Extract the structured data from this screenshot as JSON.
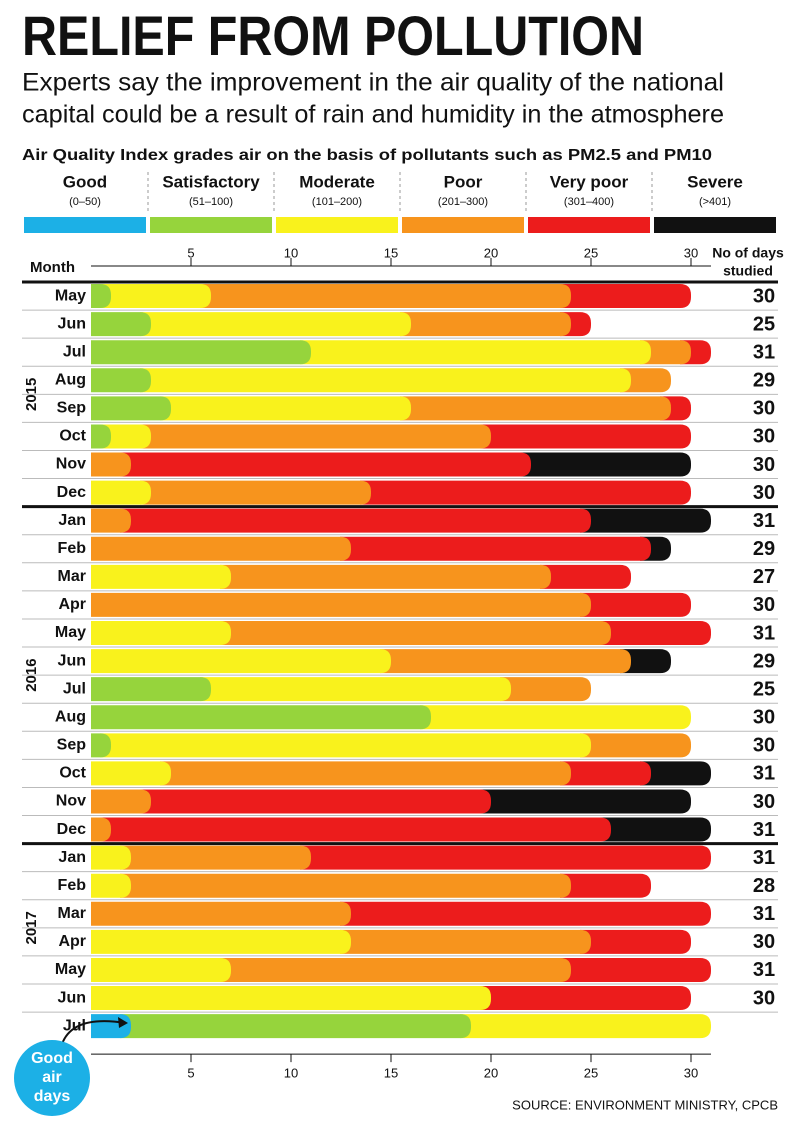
{
  "chart_data": {
    "type": "stacked-bar-horizontal",
    "title": "RELIEF FROM POLLUTION",
    "subtitle": [
      "Experts say the improvement in the air quality of the national",
      "capital could be a result of rain and humidity in the atmosphere"
    ],
    "legend_title": "Air Quality Index grades air on the basis of pollutants such as PM2.5 and PM10",
    "y_label": "Month",
    "category_groups": [
      {
        "label": "2015",
        "categories": [
          "May",
          "Jun",
          "Jul",
          "Aug",
          "Sep",
          "Oct",
          "Nov",
          "Dec"
        ]
      },
      {
        "label": "2016",
        "categories": [
          "Jan",
          "Feb",
          "Mar",
          "Apr",
          "May",
          "Jun",
          "Jul",
          "Aug",
          "Sep",
          "Oct",
          "Nov",
          "Dec"
        ]
      },
      {
        "label": "2017",
        "categories": [
          "Jan",
          "Feb",
          "Mar",
          "Apr",
          "May",
          "Jun",
          "Jul"
        ]
      }
    ],
    "series": [
      {
        "name": "Good",
        "range": "(0–50)",
        "color": "#1cb0e6",
        "values": [
          0,
          0,
          0,
          0,
          0,
          0,
          0,
          0,
          0,
          0,
          0,
          0,
          0,
          0,
          0,
          0,
          0,
          0,
          0,
          0,
          0,
          0,
          0,
          0,
          0,
          0,
          2
        ]
      },
      {
        "name": "Satisfactory",
        "range": "(51–100)",
        "color": "#96d43c",
        "values": [
          1,
          3,
          11,
          3,
          4,
          1,
          0,
          0,
          0,
          0,
          0,
          0,
          0,
          0,
          6,
          17,
          1,
          0,
          0,
          0,
          0,
          0,
          0,
          0,
          0,
          0,
          17
        ]
      },
      {
        "name": "Moderate",
        "range": "(101–200)",
        "color": "#f9f21c",
        "values": [
          5,
          13,
          17,
          24,
          12,
          2,
          0,
          3,
          0,
          0,
          7,
          0,
          7,
          15,
          15,
          13,
          24,
          4,
          0,
          0,
          2,
          2,
          0,
          13,
          7,
          20,
          12
        ]
      },
      {
        "name": "Poor",
        "range": "(201–300)",
        "color": "#f7941d",
        "values": [
          18,
          8,
          2,
          2,
          13,
          17,
          2,
          11,
          2,
          13,
          16,
          25,
          19,
          12,
          4,
          0,
          5,
          20,
          3,
          1,
          9,
          22,
          13,
          12,
          17,
          0,
          0
        ]
      },
      {
        "name": "Very poor",
        "range": "(301–400)",
        "color": "#ec1c1c",
        "values": [
          6,
          1,
          1,
          0,
          1,
          10,
          20,
          16,
          23,
          15,
          4,
          5,
          5,
          0,
          0,
          0,
          0,
          4,
          17,
          25,
          20,
          4,
          18,
          5,
          7,
          10,
          0
        ]
      },
      {
        "name": "Severe",
        "range": "(>401)",
        "color": "#111111",
        "values": [
          0,
          0,
          0,
          0,
          0,
          0,
          8,
          0,
          6,
          1,
          0,
          0,
          0,
          2,
          0,
          0,
          0,
          3,
          10,
          5,
          0,
          0,
          0,
          0,
          0,
          0,
          0
        ]
      }
    ],
    "totals": {
      "label": [
        "No of days",
        "studied"
      ],
      "values": [
        30,
        25,
        31,
        29,
        30,
        30,
        30,
        30,
        31,
        29,
        27,
        30,
        31,
        29,
        25,
        30,
        30,
        31,
        30,
        31,
        31,
        28,
        31,
        30,
        31,
        30,
        null
      ]
    },
    "xlim": [
      0,
      31
    ],
    "xticks": [
      5,
      10,
      15,
      20,
      25,
      30
    ],
    "annotation": [
      "Good",
      "air",
      "days"
    ],
    "source": "SOURCE: ENVIRONMENT MINISTRY, CPCB"
  }
}
